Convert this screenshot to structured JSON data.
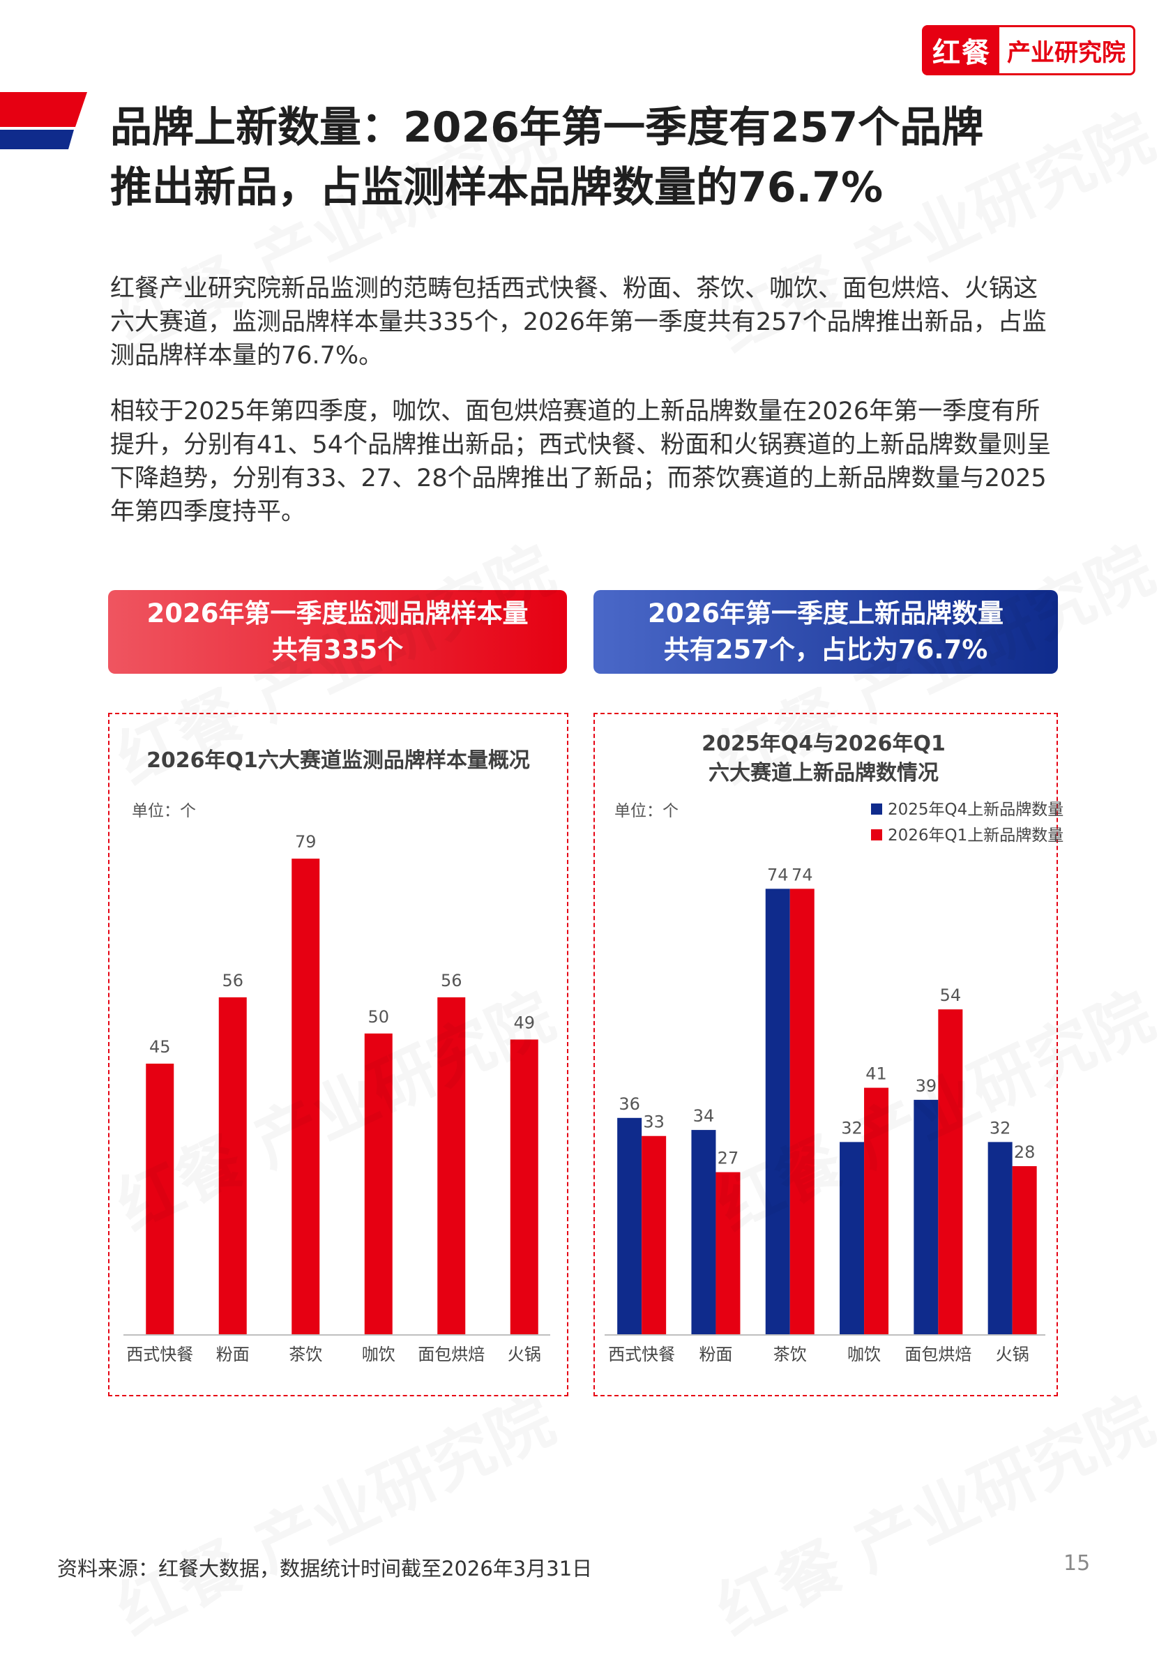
{
  "logo": {
    "brand": "红餐",
    "text": "产业研究院"
  },
  "title": {
    "line1": "品牌上新数量：2026年第一季度有257个品牌",
    "line2": "推出新品，占监测样本品牌数量的76.7%"
  },
  "paragraphs": [
    "红餐产业研究院新品监测的范畴包括西式快餐、粉面、茶饮、咖饮、面包烘焙、火锅这六大赛道，监测品牌样本量共335个，2026年第一季度共有257个品牌推出新品，占监测品牌样本量的76.7%。",
    "相较于2025年第四季度，咖饮、面包烘焙赛道的上新品牌数量在2026年第一季度有所提升，分别有41、54个品牌推出新品；西式快餐、粉面和火锅赛道的上新品牌数量则呈下降趋势，分别有33、27、28个品牌推出了新品；而茶饮赛道的上新品牌数量与2025年第四季度持平。"
  ],
  "banners": {
    "left": {
      "line1": "2026年第一季度监测品牌样本量",
      "line2": "共有335个"
    },
    "right": {
      "line1": "2026年第一季度上新品牌数量",
      "line2": "共有257个，占比为76.7%"
    }
  },
  "colors": {
    "red": "#e60012",
    "blue": "#0f2b8c"
  },
  "watermark": "红餐 产业研究院",
  "chart_data": [
    {
      "type": "bar",
      "title": "2026年Q1六大赛道监测品牌样本量概况",
      "unit_label": "单位：个",
      "categories": [
        "西式快餐",
        "粉面",
        "茶饮",
        "咖饮",
        "面包烘焙",
        "火锅"
      ],
      "values": [
        45,
        56,
        79,
        50,
        56,
        49
      ],
      "ylim": [
        0,
        90
      ],
      "grid": false,
      "color": "#e60012"
    },
    {
      "type": "bar",
      "title_lines": [
        "2025年Q4与2026年Q1",
        "六大赛道上新品牌数情况"
      ],
      "unit_label": "单位：个",
      "categories": [
        "西式快餐",
        "粉面",
        "茶饮",
        "咖饮",
        "面包烘焙",
        "火锅"
      ],
      "series": [
        {
          "name": "2025年Q4上新品牌数量",
          "values": [
            36,
            34,
            74,
            32,
            39,
            32
          ],
          "color": "#0f2b8c"
        },
        {
          "name": "2026年Q1上新品牌数量",
          "values": [
            33,
            27,
            74,
            41,
            54,
            28
          ],
          "color": "#e60012"
        }
      ],
      "legend": "top-right",
      "ylim": [
        0,
        90
      ],
      "grid": false
    }
  ],
  "footer": {
    "source": "资料来源：红餐大数据，数据统计时间截至2026年3月31日",
    "page": "15"
  }
}
